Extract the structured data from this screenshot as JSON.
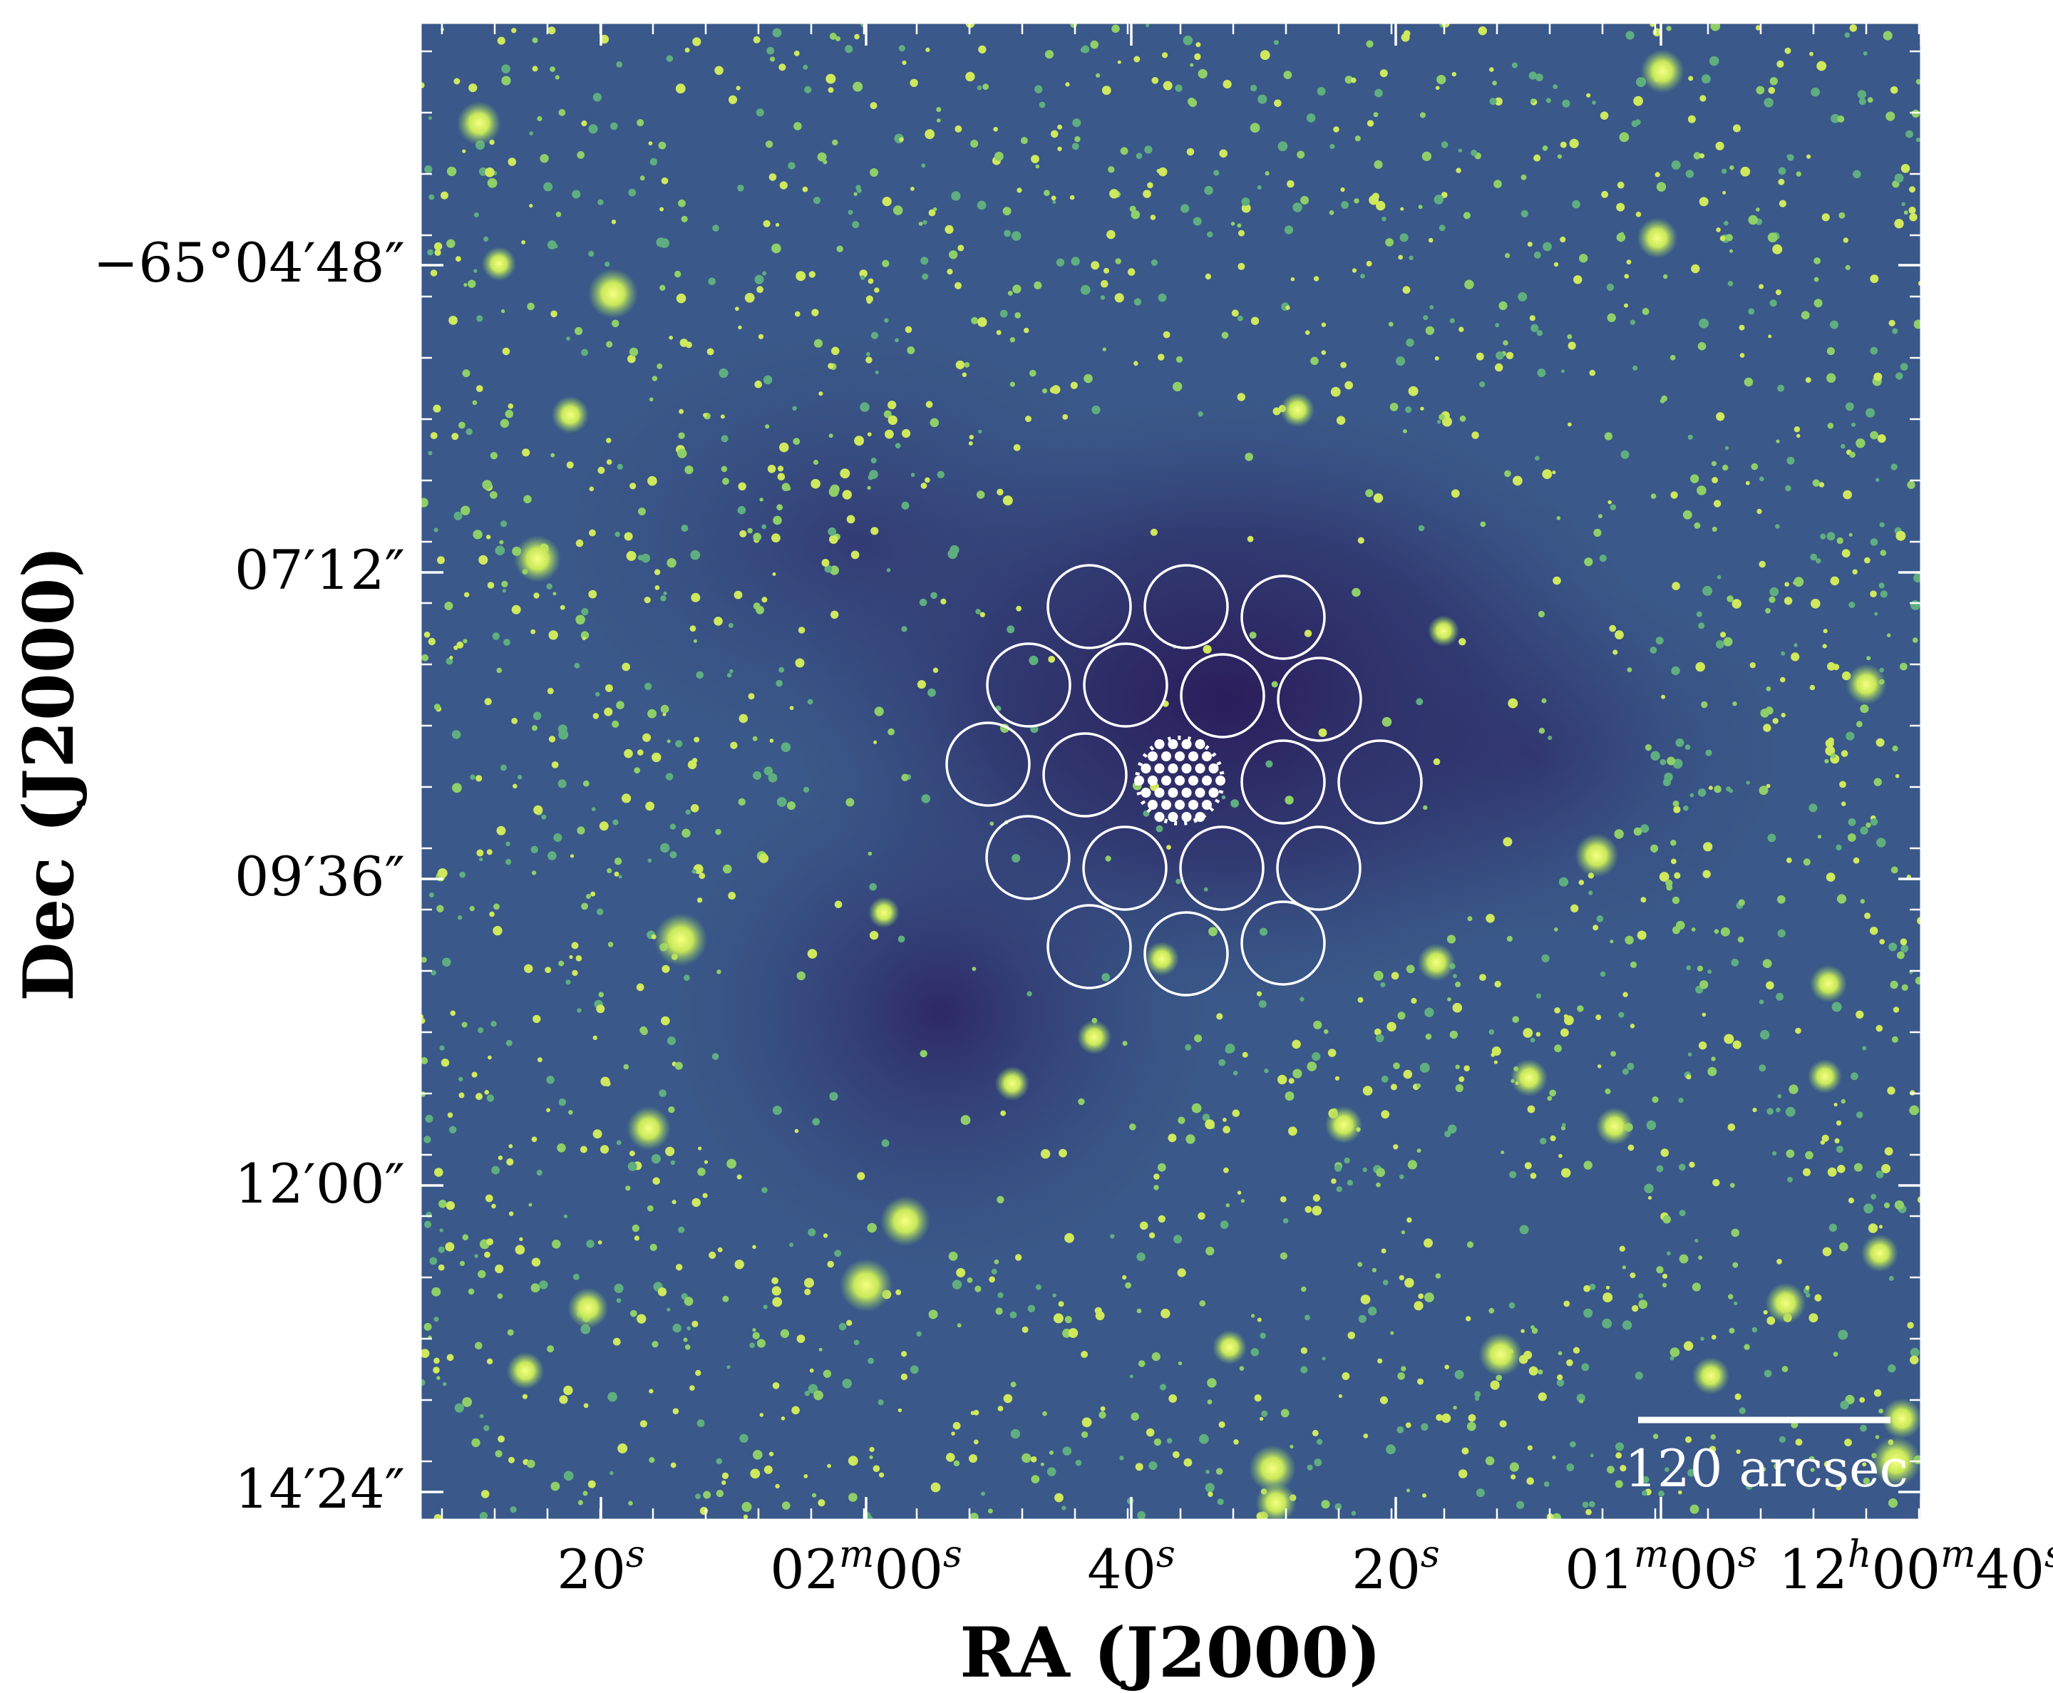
{
  "axes": {
    "xlabel": "RA (J2000)",
    "ylabel": "Dec (J2000)",
    "x_ticks": [
      "20",
      "02",
      "00",
      "40",
      "20",
      "01",
      "00",
      "12",
      "00",
      "40"
    ],
    "x_tick_parts": [
      {
        "a": "20",
        "as": "s"
      },
      {
        "a": "02",
        "as": "m",
        "b": "00",
        "bs": "s"
      },
      {
        "a": "40",
        "as": "s"
      },
      {
        "a": "20",
        "as": "s"
      },
      {
        "a": "01",
        "as": "m",
        "b": "00",
        "bs": "s"
      },
      {
        "a": "12",
        "as": "h",
        "b": "00",
        "bs": "m",
        "c": "40",
        "cs": "s"
      }
    ],
    "y_ticks": [
      "−65°04′48″",
      "07′12″",
      "09′36″",
      "12′00″",
      "14′24″"
    ]
  },
  "scalebar": {
    "label": "120 arcsec"
  },
  "colors": {
    "background_field": "#3b5a8a",
    "dark_cloud": "#2b1d5e",
    "star": "#d8f060",
    "overlay": "#ffffff"
  }
}
